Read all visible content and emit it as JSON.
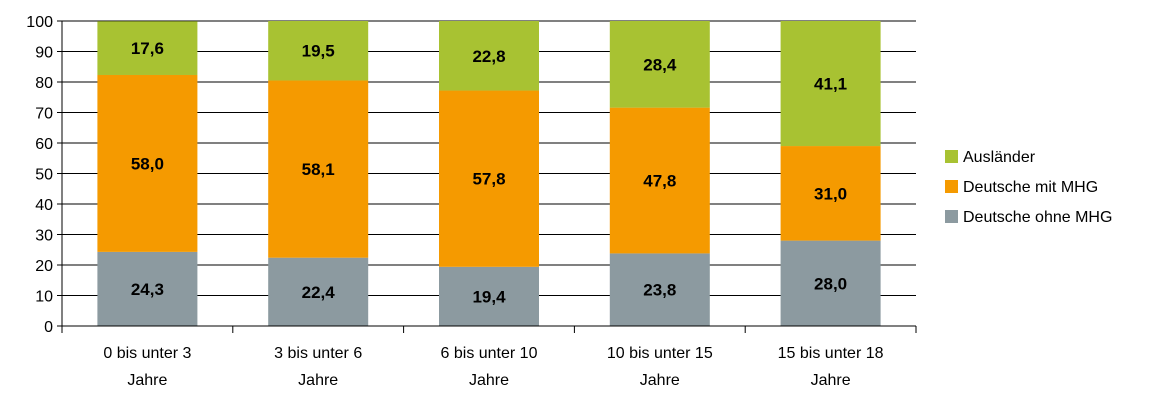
{
  "chart_data": {
    "type": "bar",
    "stacked": true,
    "percent": true,
    "categories": [
      [
        "0 bis unter 3",
        "Jahre"
      ],
      [
        "3 bis unter 6",
        "Jahre"
      ],
      [
        "6 bis unter 10",
        "Jahre"
      ],
      [
        "10 bis unter 15",
        "Jahre"
      ],
      [
        "15 bis unter 18",
        "Jahre"
      ]
    ],
    "series": [
      {
        "name": "Deutsche ohne MHG",
        "color": "#8c9aa0",
        "values": [
          24.3,
          22.4,
          19.4,
          23.8,
          28.0
        ],
        "labels": [
          "24,3",
          "22,4",
          "19,4",
          "23,8",
          "28,0"
        ]
      },
      {
        "name": "Deutsche mit MHG",
        "color": "#f59a00",
        "values": [
          58.0,
          58.1,
          57.8,
          47.8,
          31.0
        ],
        "labels": [
          "58,0",
          "58,1",
          "57,8",
          "47,8",
          "31,0"
        ]
      },
      {
        "name": "Ausländer",
        "color": "#a8c232",
        "values": [
          17.6,
          19.5,
          22.8,
          28.4,
          41.1
        ],
        "labels": [
          "17,6",
          "19,5",
          "22,8",
          "28,4",
          "41,1"
        ]
      }
    ],
    "legend_order": [
      "Ausländer",
      "Deutsche mit MHG",
      "Deutsche ohne MHG"
    ],
    "yticks": [
      "0",
      "10",
      "20",
      "30",
      "40",
      "50",
      "60",
      "70",
      "80",
      "90",
      "100"
    ],
    "ylim": [
      0,
      100
    ],
    "grid": true,
    "legend_position": "right"
  }
}
